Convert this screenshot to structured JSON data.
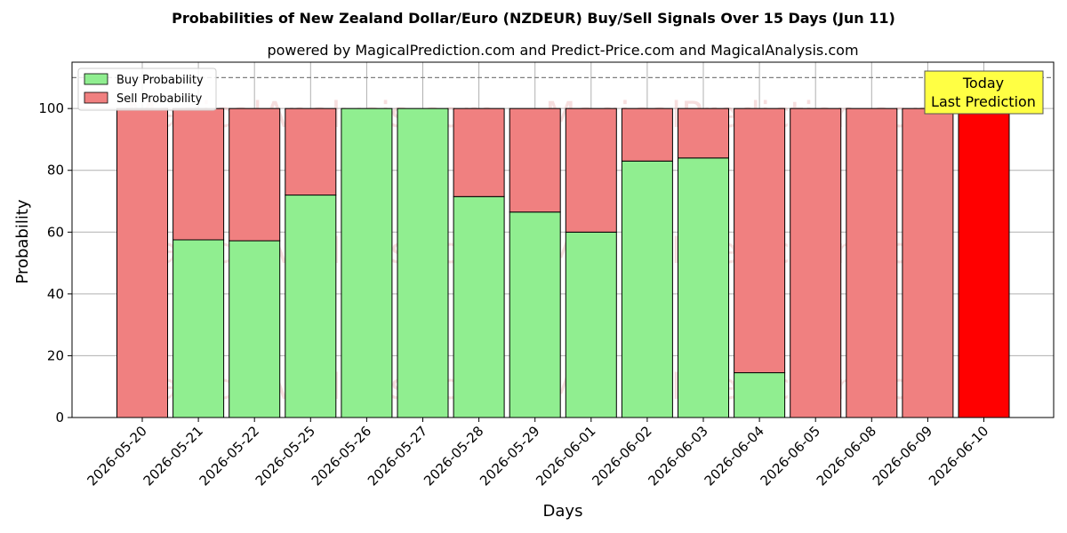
{
  "chart_data": {
    "type": "bar",
    "stacked": true,
    "title": "Probabilities of New Zealand Dollar/Euro (NZDEUR) Buy/Sell Signals Over 15 Days (Jun 11)",
    "subtitle": "powered by MagicalPrediction.com and Predict-Price.com and MagicalAnalysis.com",
    "xlabel": "Days",
    "ylabel": "Probability",
    "ylim": [
      0,
      115
    ],
    "yticks": [
      0,
      20,
      40,
      60,
      80,
      100
    ],
    "grid": true,
    "reference_line": 110,
    "legend_position": "top-left",
    "categories": [
      "2026-05-20",
      "2026-05-21",
      "2026-05-22",
      "2026-05-25",
      "2026-05-26",
      "2026-05-27",
      "2026-05-28",
      "2026-05-29",
      "2026-06-01",
      "2026-06-02",
      "2026-06-03",
      "2026-06-04",
      "2026-06-05",
      "2026-06-08",
      "2026-06-09",
      "2026-06-10"
    ],
    "series": [
      {
        "name": "Buy Probability",
        "color": "#90ee90",
        "values": [
          0,
          57.5,
          57.2,
          72,
          100,
          100,
          71.5,
          66.5,
          60,
          83,
          84,
          14.5,
          0,
          0,
          0,
          0
        ]
      },
      {
        "name": "Sell Probability",
        "color": "#f08080",
        "values": [
          100,
          42.5,
          42.8,
          28,
          0,
          0,
          28.5,
          33.5,
          40,
          17,
          16,
          85.5,
          100,
          100,
          100,
          100
        ]
      }
    ],
    "highlight": {
      "index": 15,
      "color": "#ff0000"
    },
    "annotation": {
      "line1": "Today",
      "line2": "Last Prediction"
    },
    "watermarks": [
      "MagicalAnalysis.com",
      "MagicalPrediction.com"
    ]
  }
}
